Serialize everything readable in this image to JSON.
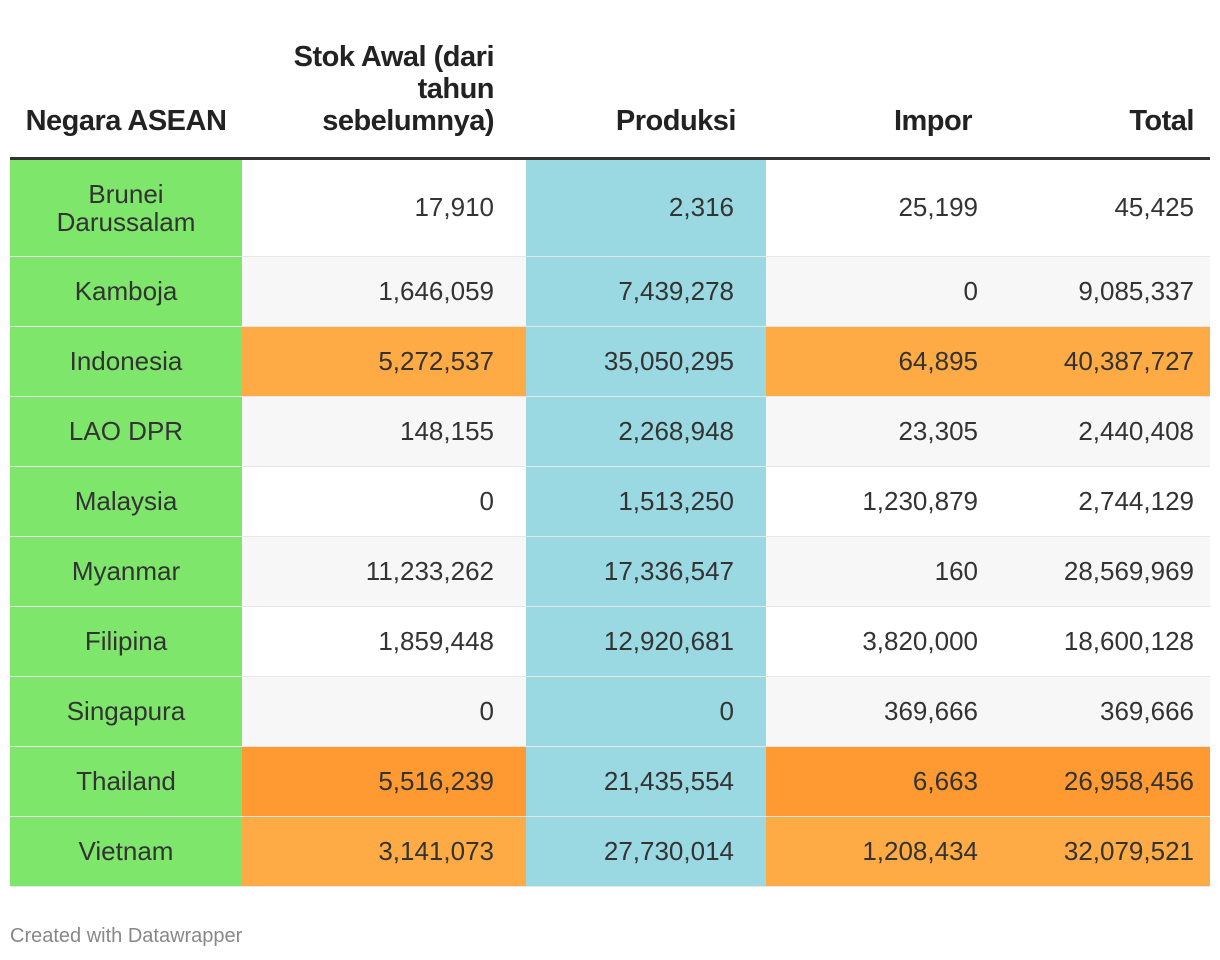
{
  "chart_data": {
    "type": "table",
    "columns": [
      "Negara ASEAN",
      "Stok Awal (dari tahun sebelumnya)",
      "Produksi",
      "Impor",
      "Total"
    ],
    "rows": [
      {
        "country": "Brunei Darussalam",
        "values": [
          "17,910",
          "2,316",
          "25,199",
          "45,425"
        ]
      },
      {
        "country": "Kamboja",
        "values": [
          "1,646,059",
          "7,439,278",
          "0",
          "9,085,337"
        ]
      },
      {
        "country": "Indonesia",
        "values": [
          "5,272,537",
          "35,050,295",
          "64,895",
          "40,387,727"
        ]
      },
      {
        "country": "LAO DPR",
        "values": [
          "148,155",
          "2,268,948",
          "23,305",
          "2,440,408"
        ]
      },
      {
        "country": "Malaysia",
        "values": [
          "0",
          "1,513,250",
          "1,230,879",
          "2,744,129"
        ]
      },
      {
        "country": "Myanmar",
        "values": [
          "11,233,262",
          "17,336,547",
          "160",
          "28,569,969"
        ]
      },
      {
        "country": "Filipina",
        "values": [
          "1,859,448",
          "12,920,681",
          "3,820,000",
          "18,600,128"
        ]
      },
      {
        "country": "Singapura",
        "values": [
          "0",
          "0",
          "369,666",
          "369,666"
        ]
      },
      {
        "country": "Thailand",
        "values": [
          "5,516,239",
          "21,435,554",
          "6,663",
          "26,958,456"
        ]
      },
      {
        "country": "Vietnam",
        "values": [
          "3,141,073",
          "27,730,014",
          "1,208,434",
          "32,079,521"
        ]
      }
    ],
    "highlights": {
      "Indonesia": {
        "stok": "#ffab45",
        "impor": "#ffab45",
        "total": "#ffab45"
      },
      "Thailand": {
        "stok": "#ff9a33",
        "impor": "#ff9a33",
        "total": "#ff9a33"
      },
      "Vietnam": {
        "stok": "#ffab45",
        "impor": "#ffab45",
        "total": "#ffab45"
      }
    },
    "colors": {
      "country_column": "#7ee66a",
      "produksi_column": "#9ad9e2"
    }
  },
  "footer": {
    "credit": "Created with Datawrapper"
  }
}
